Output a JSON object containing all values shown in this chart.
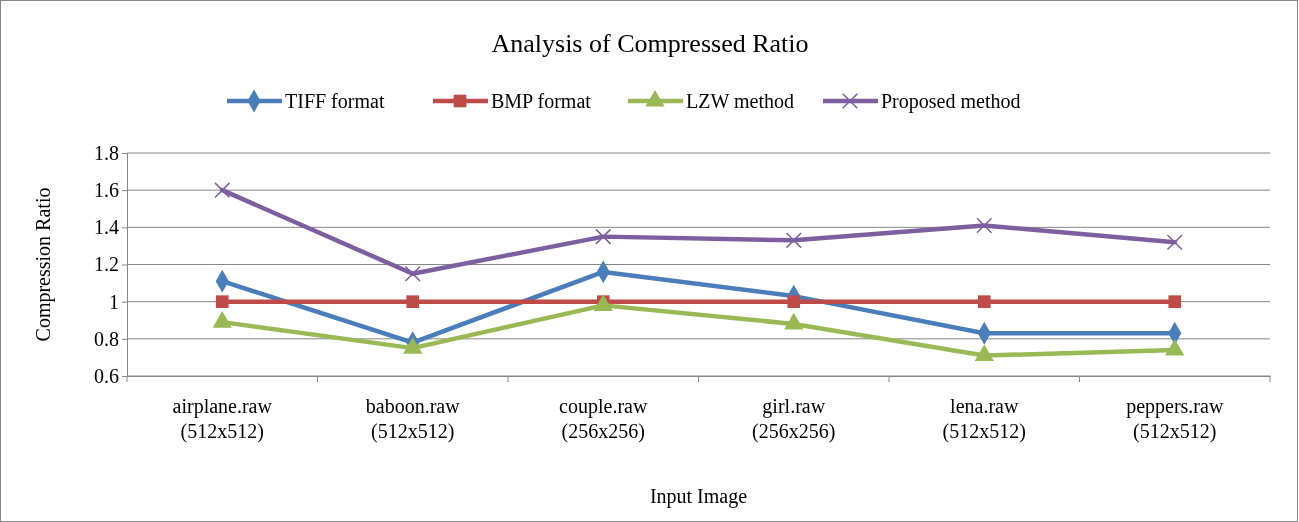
{
  "chart_data": {
    "type": "line",
    "title": "Analysis of Compressed Ratio",
    "xlabel": "Input Image",
    "ylabel": "Compression Ratio",
    "categories": [
      "airplane.raw (512x512)",
      "baboon.raw (512x512)",
      "couple.raw (256x256)",
      "girl.raw (256x256)",
      "lena.raw (512x512)",
      "peppers.raw (512x512)"
    ],
    "series": [
      {
        "name": "TIFF format",
        "color": "#4a7ebb",
        "marker": "diamond",
        "values": [
          1.11,
          0.78,
          1.16,
          1.03,
          0.83,
          0.83
        ]
      },
      {
        "name": "BMP format",
        "color": "#be4b48",
        "marker": "square",
        "values": [
          1,
          1,
          1,
          1,
          1,
          1
        ]
      },
      {
        "name": "LZW method",
        "color": "#98b954",
        "marker": "triangle",
        "values": [
          0.89,
          0.75,
          0.98,
          0.88,
          0.71,
          0.74
        ]
      },
      {
        "name": "Proposed method",
        "color": "#7d5fa0",
        "marker": "cross",
        "values": [
          1.6,
          1.15,
          1.35,
          1.33,
          1.41,
          1.32
        ]
      }
    ],
    "ylim": [
      0.6,
      1.8
    ],
    "yticks": [
      {
        "value": 0.6,
        "label": "0.6"
      },
      {
        "value": 0.8,
        "label": "0.8"
      },
      {
        "value": 1,
        "label": "1"
      },
      {
        "value": 1.2,
        "label": "1.2"
      },
      {
        "value": 1.4,
        "label": "1.4"
      },
      {
        "value": 1.6,
        "label": "1.6"
      },
      {
        "value": 1.8,
        "label": "1.8"
      }
    ],
    "grid": "y",
    "legend": "top"
  }
}
